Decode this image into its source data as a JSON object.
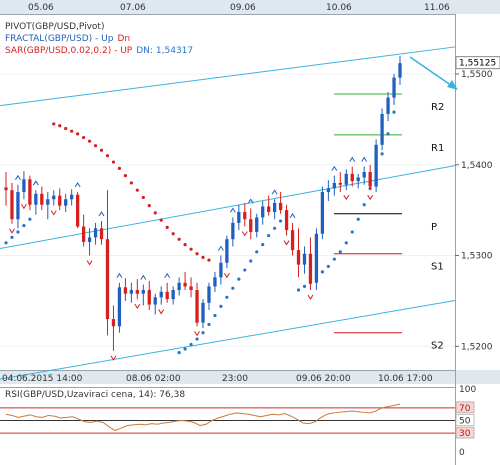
{
  "header": {
    "line1": "PIVOT(GBP/USD,Pivot)",
    "line2_name": "FRACTAL(GBP/USD) - ",
    "line2_up": "Up",
    "line2_dn": "Dn",
    "line3_name": "SAR(GBP/USD,0.02,0.2) - ",
    "line3_up": "UP",
    "line3_dn_label": "DN:",
    "line3_value": "1,54317"
  },
  "colors": {
    "background": "#ffffff",
    "axis_bar": "#dfe7ef",
    "candle_up": "#1f5fbf",
    "candle_down": "#d61f1f",
    "sar": "#d61f1f",
    "sar_up": "#2a74c8",
    "channel": "#3ab3e0",
    "pivot_r": "#2fb02f",
    "pivot_p": "#000000",
    "pivot_s": "#c81f1f",
    "rsi_line": "#c87a3c",
    "rsi_levels": "#d62a2a",
    "header_text": "#333333",
    "header_fractal": "#1f5fbf",
    "header_sar": "#d61f1f"
  },
  "top_axis": [
    "05.06",
    "07.06",
    "09.06",
    "10.06",
    "11.06"
  ],
  "bottom_axis": [
    "04.06.2015 14:00",
    "08.06 02:00",
    "23:00",
    "09.06 20:00",
    "10.06 17:00"
  ],
  "chart_data": [
    {
      "type": "candlestick",
      "title": "",
      "y_ticks": [
        "1,5500",
        "1,5400",
        "1,5300",
        "1,5200"
      ],
      "y_tick_values": [
        1.55,
        1.54,
        1.53,
        1.52
      ],
      "ylim": [
        1.5175,
        1.5565
      ],
      "price_label": "1,55125",
      "price_value": 1.55125,
      "pivots": [
        {
          "name": "R2",
          "value": 1.5478,
          "color": "#2fb02f"
        },
        {
          "name": "R1",
          "value": 1.5433,
          "color": "#2fb02f"
        },
        {
          "name": "P",
          "value": 1.5346,
          "color": "#000000"
        },
        {
          "name": "S1",
          "value": 1.5302,
          "color": "#c81f1f"
        },
        {
          "name": "S2",
          "value": 1.5215,
          "color": "#c81f1f"
        }
      ],
      "ohlc": [
        [
          1.5375,
          1.5392,
          1.5355,
          1.5372
        ],
        [
          1.5372,
          1.538,
          1.5335,
          1.534
        ],
        [
          1.534,
          1.5378,
          1.533,
          1.537
        ],
        [
          1.537,
          1.5393,
          1.5362,
          1.5384
        ],
        [
          1.5384,
          1.5388,
          1.535,
          1.5356
        ],
        [
          1.5356,
          1.5372,
          1.5345,
          1.5368
        ],
        [
          1.5368,
          1.5376,
          1.535,
          1.5356
        ],
        [
          1.5356,
          1.537,
          1.534,
          1.5362
        ],
        [
          1.5362,
          1.5372,
          1.5355,
          1.5366
        ],
        [
          1.5366,
          1.5374,
          1.535,
          1.5355
        ],
        [
          1.5355,
          1.5368,
          1.5348,
          1.5362
        ],
        [
          1.5362,
          1.5373,
          1.5355,
          1.5367
        ],
        [
          1.5367,
          1.537,
          1.533,
          1.5332
        ],
        [
          1.5332,
          1.5345,
          1.531,
          1.5315
        ],
        [
          1.5315,
          1.533,
          1.53,
          1.532
        ],
        [
          1.532,
          1.5336,
          1.5312,
          1.533
        ],
        [
          1.533,
          1.5338,
          1.5312,
          1.5318
        ],
        [
          1.5318,
          1.5372,
          1.5212,
          1.523
        ],
        [
          1.523,
          1.5245,
          1.5195,
          1.5222
        ],
        [
          1.5222,
          1.527,
          1.5215,
          1.5265
        ],
        [
          1.5265,
          1.5275,
          1.525,
          1.5258
        ],
        [
          1.5258,
          1.527,
          1.5248,
          1.5262
        ],
        [
          1.5262,
          1.5274,
          1.5252,
          1.5258
        ],
        [
          1.5258,
          1.5268,
          1.5245,
          1.5262
        ],
        [
          1.5262,
          1.5272,
          1.524,
          1.5246
        ],
        [
          1.5246,
          1.5258,
          1.5235,
          1.5254
        ],
        [
          1.5254,
          1.5266,
          1.5246,
          1.526
        ],
        [
          1.526,
          1.527,
          1.5248,
          1.5252
        ],
        [
          1.5252,
          1.5266,
          1.5246,
          1.5262
        ],
        [
          1.5262,
          1.5276,
          1.5256,
          1.527
        ],
        [
          1.527,
          1.5282,
          1.5262,
          1.5266
        ],
        [
          1.5266,
          1.5276,
          1.5254,
          1.5262
        ],
        [
          1.5262,
          1.527,
          1.5222,
          1.5226
        ],
        [
          1.5226,
          1.5252,
          1.522,
          1.5248
        ],
        [
          1.5248,
          1.527,
          1.524,
          1.5266
        ],
        [
          1.5266,
          1.5282,
          1.526,
          1.5276
        ],
        [
          1.5276,
          1.53,
          1.5268,
          1.5292
        ],
        [
          1.5292,
          1.5322,
          1.5286,
          1.5318
        ],
        [
          1.5318,
          1.5342,
          1.531,
          1.5336
        ],
        [
          1.5336,
          1.5356,
          1.5328,
          1.5348
        ],
        [
          1.5348,
          1.5358,
          1.5332,
          1.534
        ],
        [
          1.534,
          1.5352,
          1.5318,
          1.5326
        ],
        [
          1.5326,
          1.5346,
          1.532,
          1.5342
        ],
        [
          1.5342,
          1.536,
          1.5334,
          1.5354
        ],
        [
          1.5354,
          1.5366,
          1.5344,
          1.5348
        ],
        [
          1.5348,
          1.5362,
          1.534,
          1.5358
        ],
        [
          1.5358,
          1.537,
          1.5346,
          1.535
        ],
        [
          1.535,
          1.5356,
          1.5322,
          1.5328
        ],
        [
          1.5328,
          1.5336,
          1.53,
          1.5306
        ],
        [
          1.5306,
          1.533,
          1.5276,
          1.529
        ],
        [
          1.529,
          1.531,
          1.528,
          1.5302
        ],
        [
          1.5302,
          1.532,
          1.5262,
          1.527
        ],
        [
          1.527,
          1.533,
          1.5262,
          1.5324
        ],
        [
          1.5324,
          1.5376,
          1.5318,
          1.537
        ],
        [
          1.537,
          1.5383,
          1.536,
          1.5374
        ],
        [
          1.5374,
          1.5388,
          1.5366,
          1.538
        ],
        [
          1.538,
          1.5392,
          1.537,
          1.5378
        ],
        [
          1.5378,
          1.5395,
          1.5372,
          1.539
        ],
        [
          1.539,
          1.5398,
          1.5376,
          1.5382
        ],
        [
          1.5382,
          1.539,
          1.5374,
          1.5386
        ],
        [
          1.5386,
          1.5398,
          1.5378,
          1.5392
        ],
        [
          1.5392,
          1.54,
          1.5372,
          1.5376
        ],
        [
          1.5376,
          1.5428,
          1.537,
          1.5422
        ],
        [
          1.5422,
          1.5462,
          1.5416,
          1.5456
        ],
        [
          1.5456,
          1.548,
          1.5448,
          1.5474
        ],
        [
          1.5474,
          1.55,
          1.5466,
          1.5496
        ],
        [
          1.5496,
          1.552,
          1.5488,
          1.5512
        ]
      ],
      "sar_down": [
        [
          8,
          1.5445
        ],
        [
          9,
          1.5443
        ],
        [
          10,
          1.544
        ],
        [
          11,
          1.5437
        ],
        [
          12,
          1.5434
        ],
        [
          13,
          1.543
        ],
        [
          14,
          1.5426
        ],
        [
          15,
          1.5421
        ],
        [
          16,
          1.5416
        ],
        [
          17,
          1.541
        ],
        [
          18,
          1.5403
        ],
        [
          19,
          1.5396
        ],
        [
          20,
          1.5388
        ],
        [
          21,
          1.538
        ],
        [
          22,
          1.5372
        ],
        [
          23,
          1.5364
        ],
        [
          24,
          1.5355
        ],
        [
          25,
          1.5347
        ],
        [
          26,
          1.5339
        ],
        [
          27,
          1.5331
        ],
        [
          28,
          1.5324
        ],
        [
          29,
          1.5318
        ],
        [
          30,
          1.5312
        ],
        [
          31,
          1.5307
        ],
        [
          32,
          1.5302
        ],
        [
          33,
          1.5298
        ],
        [
          34,
          1.5295
        ]
      ],
      "sar_up_points": [
        [
          0,
          1.5314
        ],
        [
          1,
          1.532
        ],
        [
          2,
          1.5326
        ],
        [
          3,
          1.5333
        ],
        [
          4,
          1.534
        ],
        [
          29,
          1.5193
        ],
        [
          30,
          1.5197
        ],
        [
          31,
          1.5202
        ],
        [
          32,
          1.5208
        ],
        [
          33,
          1.5215
        ],
        [
          34,
          1.5224
        ],
        [
          35,
          1.5234
        ],
        [
          36,
          1.5244
        ],
        [
          37,
          1.5254
        ],
        [
          38,
          1.5264
        ],
        [
          39,
          1.5274
        ],
        [
          40,
          1.5284
        ],
        [
          41,
          1.5294
        ],
        [
          42,
          1.5304
        ],
        [
          43,
          1.5312
        ],
        [
          44,
          1.5322
        ],
        [
          45,
          1.533
        ],
        [
          46,
          1.5338
        ],
        [
          47,
          1.5344
        ],
        [
          49,
          1.5262
        ],
        [
          50,
          1.5266
        ],
        [
          51,
          1.527
        ],
        [
          52,
          1.5276
        ],
        [
          53,
          1.5282
        ],
        [
          54,
          1.5288
        ],
        [
          55,
          1.5296
        ],
        [
          56,
          1.5304
        ],
        [
          57,
          1.5314
        ],
        [
          58,
          1.5326
        ],
        [
          59,
          1.534
        ],
        [
          60,
          1.5356
        ],
        [
          61,
          1.5374
        ],
        [
          62,
          1.5392
        ],
        [
          63,
          1.5412
        ],
        [
          64,
          1.5434
        ],
        [
          65,
          1.5458
        ]
      ],
      "channel": [
        {
          "name": "upper",
          "from": [
            0,
            1.5466
          ],
          "to": [
            66,
            1.5522
          ]
        },
        {
          "name": "middle",
          "from": [
            0,
            1.5309
          ],
          "to": [
            66,
            1.5388
          ]
        },
        {
          "name": "lower",
          "from": [
            0,
            1.5165
          ],
          "to": [
            66,
            1.524
          ]
        }
      ],
      "fractal_up_idx": [
        2,
        5,
        12,
        16,
        19,
        23,
        27,
        36,
        38,
        41,
        45,
        48,
        55,
        58,
        60
      ],
      "fractal_dn_idx": [
        1,
        3,
        8,
        14,
        18,
        22,
        26,
        32,
        37,
        40,
        47,
        51,
        57,
        61
      ]
    },
    {
      "type": "line",
      "title": "RSI(GBP/USD,Uzaviraci cena, 14): 76,38",
      "ylim": [
        0,
        100
      ],
      "y_ticks": [
        "100",
        "70",
        "50",
        "30",
        "0"
      ],
      "y_tick_values": [
        100,
        70,
        50,
        30,
        0
      ],
      "levels": [
        70,
        50,
        30
      ],
      "values": [
        60,
        58,
        55,
        57,
        59,
        56,
        55,
        58,
        57,
        54,
        55,
        56,
        52,
        48,
        47,
        49,
        47,
        40,
        34,
        38,
        42,
        43,
        44,
        43,
        45,
        44,
        46,
        47,
        49,
        50,
        49,
        47,
        42,
        44,
        50,
        54,
        57,
        60,
        62,
        61,
        60,
        58,
        56,
        58,
        60,
        59,
        61,
        57,
        52,
        46,
        45,
        48,
        55,
        60,
        62,
        63,
        64,
        65,
        64,
        63,
        62,
        65,
        70,
        72,
        74,
        76
      ]
    }
  ]
}
